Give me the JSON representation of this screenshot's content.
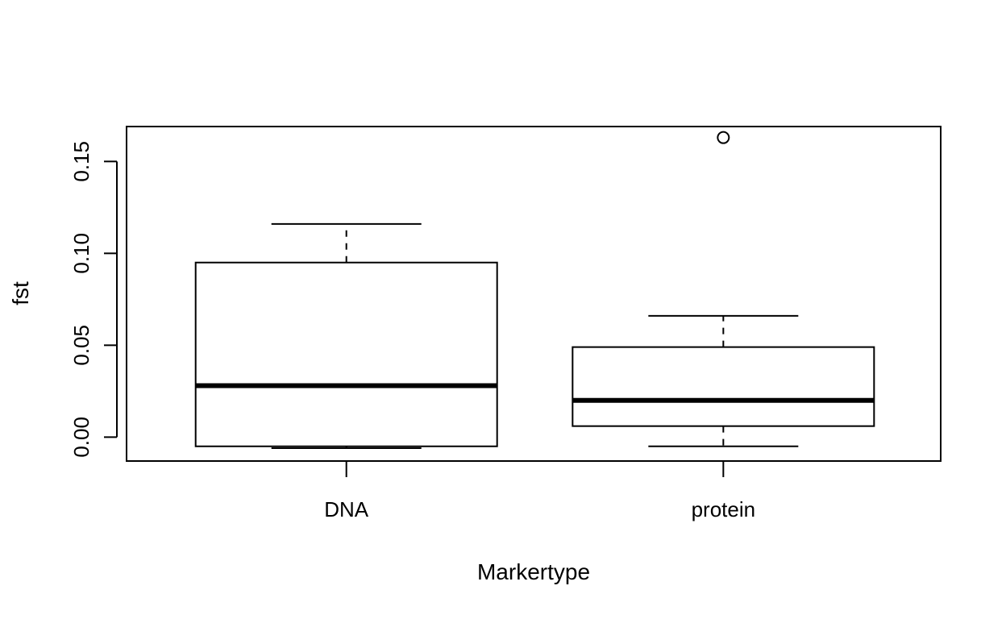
{
  "chart_data": {
    "type": "boxplot",
    "title": "",
    "xlabel": "Markertype",
    "ylabel": "fst",
    "ylim": [
      -0.013,
      0.169
    ],
    "yticks": [
      "0.00",
      "0.05",
      "0.10",
      "0.15"
    ],
    "ytick_values": [
      0.0,
      0.05,
      0.1,
      0.15
    ],
    "grid": false,
    "categories": [
      "DNA",
      "protein"
    ],
    "boxes": [
      {
        "category": "DNA",
        "whisker_low": -0.006,
        "q1": -0.005,
        "median": 0.028,
        "q3": 0.095,
        "whisker_high": 0.116,
        "outliers": []
      },
      {
        "category": "protein",
        "whisker_low": -0.005,
        "q1": 0.006,
        "median": 0.02,
        "q3": 0.049,
        "whisker_high": 0.066,
        "outliers": [
          0.163
        ]
      }
    ]
  }
}
